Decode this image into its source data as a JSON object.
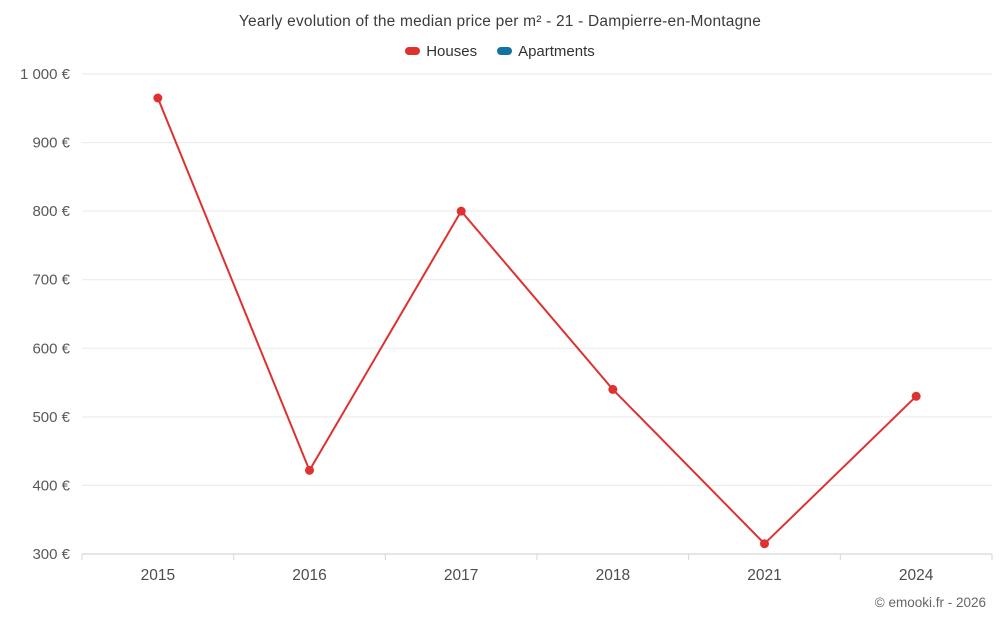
{
  "header": {
    "title": "Yearly evolution of the median price per m² - 21 - Dampierre-en-Montagne"
  },
  "footer": {
    "credit": "© emooki.fr - 2026"
  },
  "chart_data": {
    "type": "line",
    "title": "Yearly evolution of the median price per m² - 21 - Dampierre-en-Montagne",
    "categories": [
      "2015",
      "2016",
      "2017",
      "2018",
      "2021",
      "2024"
    ],
    "series": [
      {
        "name": "Houses",
        "color": "#e03131",
        "values": [
          965,
          422,
          800,
          540,
          315,
          530
        ]
      },
      {
        "name": "Apartments",
        "color": "#1272a2",
        "values": []
      }
    ],
    "xlabel": "",
    "ylabel": "",
    "ylim": [
      300,
      1000
    ],
    "yticks": [
      300,
      400,
      500,
      600,
      700,
      800,
      900,
      1000
    ],
    "ytick_suffix": " €",
    "grid": true,
    "legend_position": "top",
    "colors": {
      "gridline": "#e9e9e9",
      "axis_line": "#cccccc",
      "tick_label": "#595959",
      "x_label": "#4d4d4d"
    }
  }
}
